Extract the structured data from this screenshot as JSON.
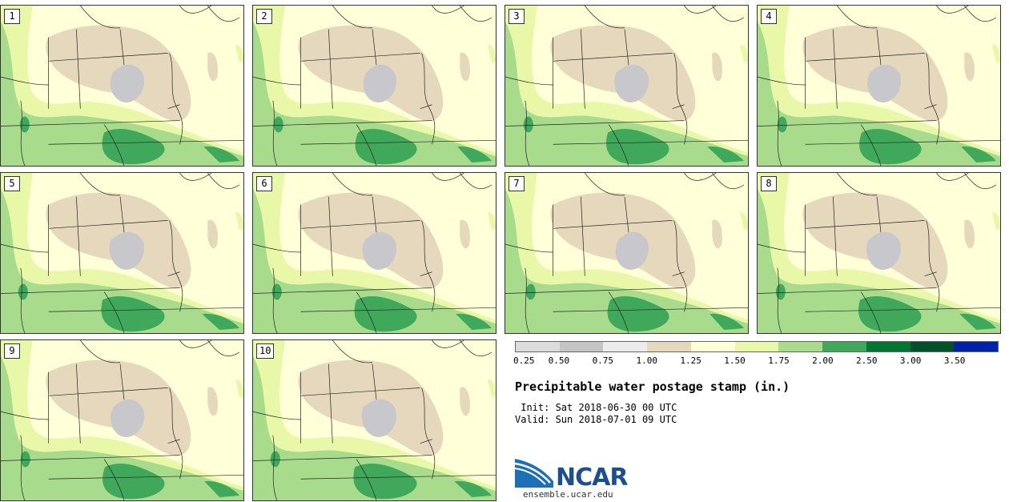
{
  "panels": [
    {
      "label": "1"
    },
    {
      "label": "2"
    },
    {
      "label": "3"
    },
    {
      "label": "4"
    },
    {
      "label": "5"
    },
    {
      "label": "6"
    },
    {
      "label": "7"
    },
    {
      "label": "8"
    },
    {
      "label": "9"
    },
    {
      "label": "10"
    }
  ],
  "colorbar": {
    "colors": [
      "#dcdcdc",
      "#c4c4c4",
      "#ececec",
      "#e6d8bc",
      "#ffffd8",
      "#e8f8a8",
      "#a8dc8c",
      "#40a85a",
      "#007832",
      "#00502a",
      "#0022aa"
    ],
    "ticks": [
      "0.25",
      "0.50",
      "0.75",
      "1.00",
      "1.25",
      "1.50",
      "1.75",
      "2.00",
      "2.50",
      "3.00",
      "3.50"
    ]
  },
  "title": "Precipitable water postage stamp (in.)",
  "init_line": " Init: Sat 2018-06-30 00 UTC",
  "valid_line": "Valid: Sun 2018-07-01 09 UTC",
  "logo": {
    "text": "NCAR",
    "url": "ensemble.ucar.edu"
  },
  "map_colors": {
    "ocean": "#ffffd8",
    "light_green": "#e8f8a8",
    "green": "#a8dc8c",
    "dark_green": "#40a85a",
    "tan": "#e6d8bc",
    "gray": "#c8c8cc",
    "boundary": "#222222"
  }
}
